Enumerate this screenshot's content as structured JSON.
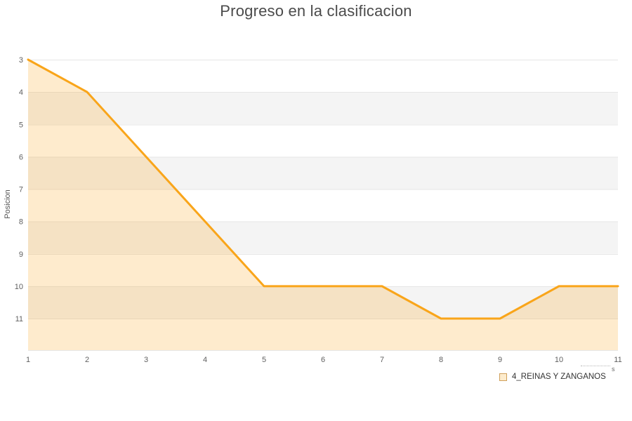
{
  "title": "Progreso en la clasificacion",
  "chart_data": {
    "type": "line",
    "title": "Progreso en la clasificacion",
    "xlabel": "",
    "ylabel": "Posicion",
    "x": [
      1,
      2,
      3,
      4,
      5,
      6,
      7,
      8,
      9,
      10,
      11
    ],
    "series": [
      {
        "name": "4_REINAS Y ZANGANOS",
        "values": [
          3,
          4,
          6,
          8,
          10,
          10,
          10,
          11,
          11,
          10,
          10
        ]
      }
    ],
    "x_ticks": [
      "1",
      "2",
      "3",
      "4",
      "5",
      "6",
      "7",
      "8",
      "9",
      "10",
      "11"
    ],
    "y_ticks": [
      "3",
      "4",
      "5",
      "6",
      "7",
      "8",
      "9",
      "10",
      "11"
    ],
    "ylim": [
      3,
      12
    ],
    "y_axis_inverted": true,
    "grid": "horizontal",
    "background_bands": "alternating",
    "area_fill": true,
    "legend_position": "bottom-right",
    "colors": {
      "line": "#F9A51A",
      "fill": "#F9A51A",
      "fill_opacity": 0.22,
      "band_gray": "#F4F4F4",
      "band_white": "#FFFFFF",
      "gridline": "#E6E6E6",
      "tick_label": "#606060",
      "title": "#4B4B4B"
    }
  },
  "legend": {
    "items": [
      {
        "label": "4_REINAS Y ZANGANOS",
        "marker_fill": "#FDECCD",
        "marker_border": "#CFA05B"
      }
    ]
  },
  "credits_fragment": "s"
}
